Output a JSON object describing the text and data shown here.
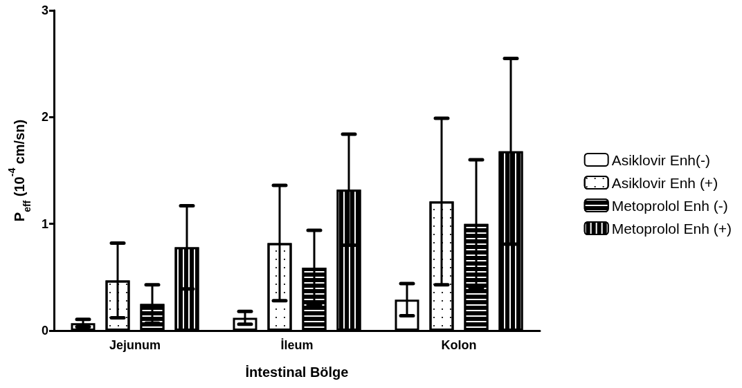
{
  "chart_data": {
    "type": "bar",
    "xlabel": "İntestinal Bölge",
    "ylabel": "P$_{eff}$ (10$^{-4}$ cm/sn)",
    "categories": [
      "Jejunum",
      "İleum",
      "Kolon"
    ],
    "series": [
      {
        "name": "Asiklovir Enh(-)",
        "color": "#ffffff",
        "values": [
          0.07,
          0.12,
          0.29
        ],
        "errors": [
          0.035,
          0.06,
          0.15
        ]
      },
      {
        "name": "Asiklovir Enh (+)",
        "color": "#ffffff",
        "values": [
          0.47,
          0.82,
          1.21
        ],
        "errors": [
          0.35,
          0.54,
          0.78
        ]
      },
      {
        "name": "Metoprolol Enh (-)",
        "color": "#000000",
        "values": [
          0.25,
          0.59,
          1.0
        ],
        "errors": [
          0.18,
          0.35,
          0.6
        ]
      },
      {
        "name": "Metoprolol Enh (+)",
        "color": "#000000",
        "values": [
          0.78,
          1.32,
          1.68
        ],
        "errors": [
          0.39,
          0.52,
          0.87
        ]
      }
    ],
    "ylim": [
      0,
      3
    ],
    "yticks": [
      0,
      1,
      2,
      3
    ],
    "grid": false,
    "legend": "right"
  }
}
